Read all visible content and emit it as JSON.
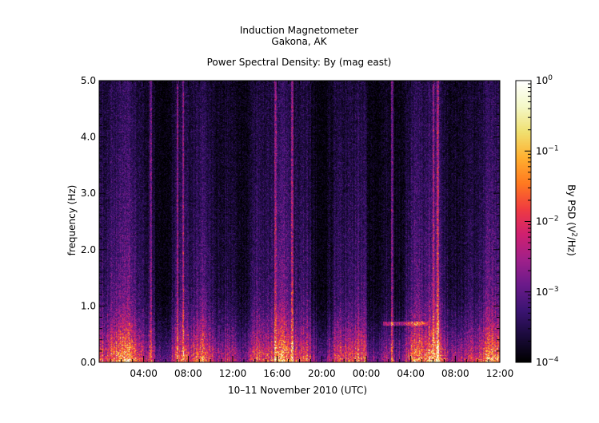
{
  "chart_data": {
    "type": "heatmap",
    "title": "Induction Magnetometer",
    "subtitle": "Gakona, AK",
    "plot_title": "Power Spectral Density: By (mag east)",
    "xlabel": "10–11 November 2010 (UTC)",
    "ylabel": "frequency (Hz)",
    "colorbar_label_pre": "By PSD (V",
    "colorbar_label_sup": "2",
    "colorbar_label_post": "/Hz)",
    "x_tick_labels": [
      "04:00",
      "08:00",
      "12:00",
      "16:00",
      "20:00",
      "00:00",
      "04:00",
      "08:00",
      "12:00"
    ],
    "x_tick_hours": [
      4,
      8,
      12,
      16,
      20,
      24,
      28,
      32,
      36
    ],
    "xlim_hours": [
      0,
      36
    ],
    "ylim": [
      0.0,
      5.0
    ],
    "y_ticks": [
      {
        "value": 0.0,
        "label": "0.0"
      },
      {
        "value": 1.0,
        "label": "1.0"
      },
      {
        "value": 2.0,
        "label": "2.0"
      },
      {
        "value": 3.0,
        "label": "3.0"
      },
      {
        "value": 4.0,
        "label": "4.0"
      },
      {
        "value": 5.0,
        "label": "5.0"
      }
    ],
    "colorbar": {
      "scale": "log",
      "range": [
        0.0001,
        1
      ],
      "ticks": [
        {
          "exp": 0,
          "base": "10",
          "sup": "0"
        },
        {
          "exp": -1,
          "base": "10",
          "sup": "−1"
        },
        {
          "exp": -2,
          "base": "10",
          "sup": "−2"
        },
        {
          "exp": -3,
          "base": "10",
          "sup": "−3"
        },
        {
          "exp": -4,
          "base": "10",
          "sup": "−4"
        }
      ],
      "colormap": [
        "#000000",
        "#1a0a3a",
        "#3b1472",
        "#6a1a8a",
        "#a0208a",
        "#d02070",
        "#f03c40",
        "#ff7a20",
        "#ffb030",
        "#f0e070",
        "#f4f8c8",
        "#ffffff"
      ]
    },
    "features": {
      "bright_columns_hours": [
        4.6,
        7.0,
        7.5,
        15.8,
        17.3,
        26.3,
        30.0,
        30.4
      ],
      "pc1_band": {
        "start_hour": 25.5,
        "end_hour": 29.5,
        "freq_hz": 0.68
      }
    }
  }
}
